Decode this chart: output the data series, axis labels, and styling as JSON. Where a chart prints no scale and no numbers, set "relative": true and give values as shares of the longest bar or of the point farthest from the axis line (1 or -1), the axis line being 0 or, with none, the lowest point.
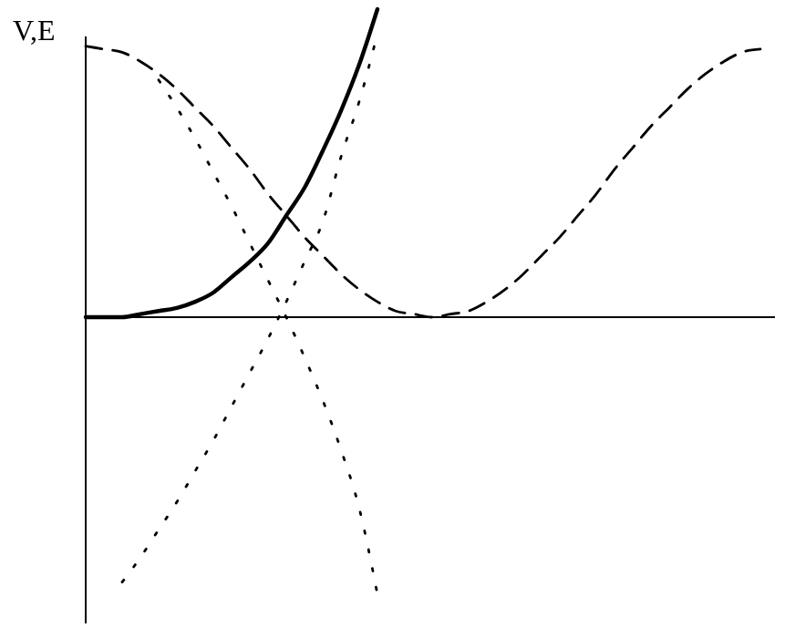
{
  "chart_data": {
    "type": "line",
    "relative": true,
    "ylabel": "V,E",
    "marker": "none",
    "categories": [
      null,
      null,
      null,
      null,
      null,
      null,
      null,
      null,
      null,
      null,
      null,
      null,
      null,
      null,
      null,
      null,
      null,
      null,
      null,
      null,
      null,
      null,
      null,
      null,
      null,
      null,
      null,
      null,
      null,
      null,
      null,
      null,
      null,
      null,
      null,
      null,
      null,
      null
    ],
    "series": [
      {
        "color": "#000000",
        "line_style": "solid",
        "values": [
          0,
          0,
          0,
          0.01,
          0.02,
          0.03,
          0.05,
          0.08,
          0.13,
          0.18,
          0.24,
          0.33,
          0.42,
          0.54,
          0.67,
          0.82,
          1,
          null,
          null,
          null,
          null,
          null,
          null,
          null,
          null,
          null,
          null,
          null,
          null,
          null,
          null,
          null,
          null,
          null,
          null,
          null,
          null,
          null
        ]
      },
      {
        "color": "#000000",
        "line_style": "dashed",
        "values": [
          0.88,
          0.87,
          0.86,
          0.83,
          0.79,
          0.74,
          0.68,
          0.62,
          0.55,
          0.48,
          0.4,
          0.33,
          0.26,
          0.2,
          0.14,
          0.09,
          0.05,
          0.02,
          0.01,
          0,
          0.01,
          0.02,
          0.05,
          0.09,
          0.14,
          0.2,
          0.26,
          0.33,
          0.4,
          0.48,
          0.55,
          0.62,
          0.68,
          0.74,
          0.79,
          0.83,
          0.86,
          0.87
        ]
      },
      {
        "color": "#000000",
        "line_style": "dotted",
        "values": [
          null,
          null,
          -0.86,
          -0.78,
          -0.69,
          -0.6,
          -0.5,
          -0.4,
          -0.29,
          -0.18,
          -0.07,
          0.05,
          0.18,
          0.31,
          0.52,
          0.7,
          0.92,
          null,
          null,
          null,
          null,
          null,
          null,
          null,
          null,
          null,
          null,
          null,
          null,
          null,
          null,
          null,
          null,
          null,
          null,
          null,
          null,
          null
        ]
      },
      {
        "color": "#000000",
        "line_style": "dotted",
        "values": [
          null,
          null,
          null,
          null,
          0.77,
          0.68,
          0.58,
          0.47,
          0.36,
          0.24,
          0.12,
          0,
          -0.13,
          -0.27,
          -0.43,
          -0.62,
          -0.9,
          null,
          null,
          null,
          null,
          null,
          null,
          null,
          null,
          null,
          null,
          null,
          null,
          null,
          null,
          null,
          null,
          null,
          null,
          null,
          null,
          null
        ]
      }
    ]
  }
}
